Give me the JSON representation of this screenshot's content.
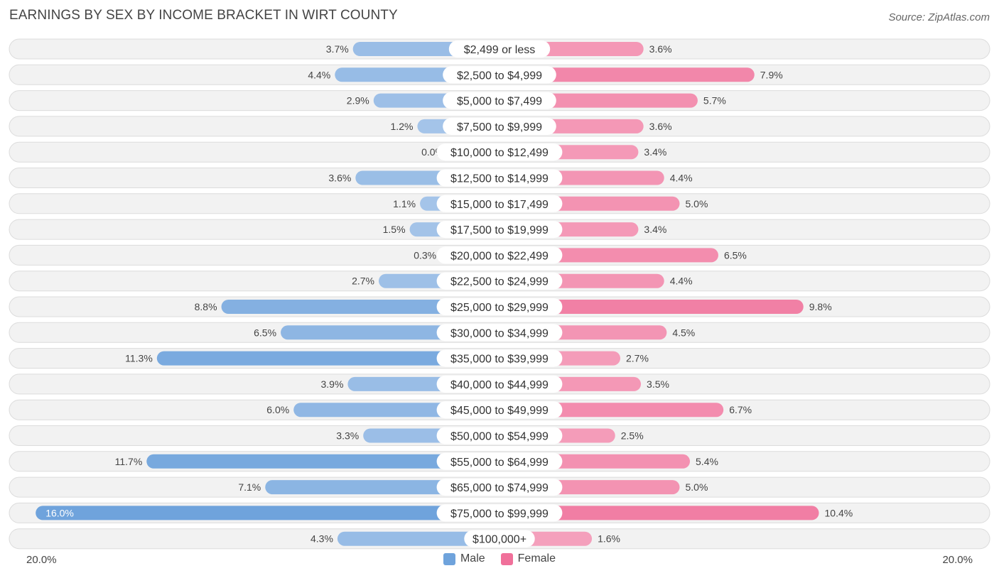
{
  "title": "EARNINGS BY SEX BY INCOME BRACKET IN WIRT COUNTY",
  "source": "Source: ZipAtlas.com",
  "colors": {
    "male": "#6fa3dc",
    "male_light": "#a9c7ea",
    "female": "#f0709a",
    "female_light": "#f5a6c0",
    "row_bg": "#f2f2f2",
    "row_border": "#dcdcdc"
  },
  "legend": {
    "male": "Male",
    "female": "Female"
  },
  "axis": {
    "left_label": "20.0%",
    "right_label": "20.0%"
  },
  "chart_data": {
    "type": "bar",
    "orientation": "horizontal-diverging",
    "title": "EARNINGS BY SEX BY INCOME BRACKET IN WIRT COUNTY",
    "xlim": [
      -20,
      20
    ],
    "categories": [
      "$2,499 or less",
      "$2,500 to $4,999",
      "$5,000 to $7,499",
      "$7,500 to $9,999",
      "$10,000 to $12,499",
      "$12,500 to $14,999",
      "$15,000 to $17,499",
      "$17,500 to $19,999",
      "$20,000 to $22,499",
      "$22,500 to $24,999",
      "$25,000 to $29,999",
      "$30,000 to $34,999",
      "$35,000 to $39,999",
      "$40,000 to $44,999",
      "$45,000 to $49,999",
      "$50,000 to $54,999",
      "$55,000 to $64,999",
      "$65,000 to $74,999",
      "$75,000 to $99,999",
      "$100,000+"
    ],
    "series": [
      {
        "name": "Male",
        "values": [
          3.7,
          4.4,
          2.9,
          1.2,
          0.0,
          3.6,
          1.1,
          1.5,
          0.3,
          2.7,
          8.8,
          6.5,
          11.3,
          3.9,
          6.0,
          3.3,
          11.7,
          7.1,
          16.0,
          4.3
        ],
        "labels": [
          "3.7%",
          "4.4%",
          "2.9%",
          "1.2%",
          "0.0%",
          "3.6%",
          "1.1%",
          "1.5%",
          "0.3%",
          "2.7%",
          "8.8%",
          "6.5%",
          "11.3%",
          "3.9%",
          "6.0%",
          "3.3%",
          "11.7%",
          "7.1%",
          "16.0%",
          "4.3%"
        ]
      },
      {
        "name": "Female",
        "values": [
          3.6,
          7.9,
          5.7,
          3.6,
          3.4,
          4.4,
          5.0,
          3.4,
          6.5,
          4.4,
          9.8,
          4.5,
          2.7,
          3.5,
          6.7,
          2.5,
          5.4,
          5.0,
          10.4,
          1.6
        ],
        "labels": [
          "3.6%",
          "7.9%",
          "5.7%",
          "3.6%",
          "3.4%",
          "4.4%",
          "5.0%",
          "3.4%",
          "6.5%",
          "4.4%",
          "9.8%",
          "4.5%",
          "2.7%",
          "3.5%",
          "6.7%",
          "2.5%",
          "5.4%",
          "5.0%",
          "10.4%",
          "1.6%"
        ]
      }
    ]
  }
}
